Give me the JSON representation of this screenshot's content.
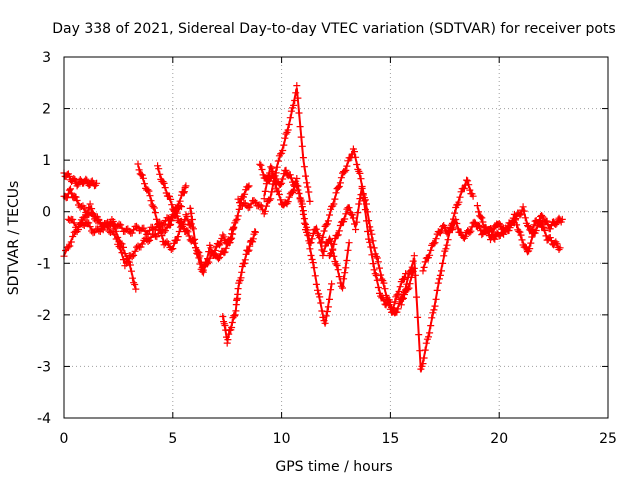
{
  "chart_data": {
    "type": "scatter",
    "title": "Day 338 of 2021, Sidereal Day-to-day VTEC variation (SDTVAR) for receiver pots",
    "xlabel": "GPS time / hours",
    "ylabel": "SDTVAR / TECUs",
    "xlim": [
      0,
      25
    ],
    "ylim": [
      -4,
      3
    ],
    "xticks": [
      "0",
      "5",
      "10",
      "15",
      "20",
      "25"
    ],
    "yticks": [
      "3",
      "2",
      "1",
      "0",
      "-1",
      "-2",
      "-3",
      "-4"
    ],
    "grid": true,
    "marker": "+",
    "series": [
      {
        "name": "SDTVAR",
        "color": "#ff0000",
        "tracks": [
          {
            "x": [
              0.0,
              0.3,
              0.6,
              0.9,
              1.2,
              1.5
            ],
            "y": [
              0.75,
              0.65,
              0.55,
              0.6,
              0.55,
              0.55
            ]
          },
          {
            "x": [
              0.0,
              0.3,
              0.6,
              1.0,
              1.4,
              1.8,
              2.2,
              2.6,
              3.0,
              3.3
            ],
            "y": [
              0.25,
              0.4,
              0.2,
              0.0,
              -0.1,
              -0.3,
              -0.2,
              -0.6,
              -1.0,
              -1.5
            ]
          },
          {
            "x": [
              0.0,
              0.4,
              0.8,
              1.2,
              1.6,
              2.0,
              2.4,
              2.8,
              3.2,
              3.6,
              4.0,
              4.4,
              4.8,
              5.0,
              5.4
            ],
            "y": [
              -0.85,
              -0.5,
              -0.2,
              0.1,
              -0.2,
              -0.3,
              -0.5,
              -1.0,
              -0.8,
              -0.6,
              -0.5,
              -0.4,
              -0.3,
              -0.1,
              0.1
            ]
          },
          {
            "x": [
              0.2,
              0.6,
              1.0,
              1.4,
              1.8,
              2.2,
              2.6,
              3.0,
              3.4,
              3.8,
              4.2,
              4.6,
              5.0,
              5.4,
              5.6
            ],
            "y": [
              -0.1,
              -0.3,
              -0.2,
              -0.4,
              -0.3,
              -0.2,
              -0.3,
              -0.4,
              -0.3,
              -0.4,
              -0.3,
              -0.2,
              -0.1,
              0.3,
              0.5
            ]
          },
          {
            "x": [
              3.4,
              3.7,
              4.0,
              4.3,
              4.6,
              5.0,
              5.3,
              5.6,
              5.9
            ],
            "y": [
              0.9,
              0.55,
              0.25,
              -0.2,
              -0.6,
              -0.7,
              -0.4,
              -0.1,
              -0.3
            ]
          },
          {
            "x": [
              4.3,
              4.6,
              4.9,
              5.2,
              5.5,
              5.8,
              6.1,
              6.4,
              6.7,
              7.0,
              7.3,
              7.6,
              7.9,
              8.2,
              8.5
            ],
            "y": [
              0.85,
              0.5,
              0.2,
              -0.1,
              -0.3,
              -0.5,
              -0.7,
              -1.1,
              -0.9,
              -0.7,
              -0.5,
              -0.6,
              -0.2,
              0.3,
              0.5
            ]
          },
          {
            "x": [
              5.8,
              6.1,
              6.4,
              6.7,
              7.0,
              7.3,
              7.6,
              7.8
            ],
            "y": [
              0.1,
              -0.8,
              -1.2,
              -0.7,
              -0.9,
              -0.8,
              -0.6,
              -0.3
            ]
          },
          {
            "x": [
              7.3,
              7.5,
              7.7,
              7.9,
              8.0,
              8.2,
              8.4,
              8.6,
              8.8
            ],
            "y": [
              -2.0,
              -2.5,
              -2.2,
              -1.9,
              -1.5,
              -1.1,
              -0.8,
              -0.6,
              -0.4
            ]
          },
          {
            "x": [
              8.0,
              8.4,
              8.8,
              9.2,
              9.5,
              9.8,
              10.1,
              10.4,
              10.7,
              11.0,
              11.3
            ],
            "y": [
              0.2,
              0.1,
              0.2,
              0.0,
              0.3,
              0.9,
              1.3,
              1.8,
              2.4,
              1.0,
              0.2
            ]
          },
          {
            "x": [
              9.0,
              9.3,
              9.6,
              9.9,
              10.2,
              10.5,
              10.8,
              11.1,
              11.4,
              11.7,
              12.0,
              12.3
            ],
            "y": [
              0.9,
              0.6,
              0.7,
              0.5,
              0.8,
              0.6,
              0.4,
              -0.3,
              -0.9,
              -1.6,
              -2.2,
              -1.4
            ]
          },
          {
            "x": [
              9.2,
              9.5,
              9.8,
              10.1,
              10.4,
              10.7,
              11.0,
              11.3,
              11.6,
              11.9,
              12.2,
              12.5,
              12.8,
              13.1
            ],
            "y": [
              0.3,
              0.9,
              0.4,
              0.1,
              0.3,
              0.6,
              0.0,
              -0.6,
              -0.3,
              -0.8,
              -0.5,
              -1.0,
              -1.5,
              -0.6
            ]
          },
          {
            "x": [
              11.8,
              12.1,
              12.4,
              12.7,
              13.0,
              13.3,
              13.6,
              13.9,
              14.2,
              14.5,
              14.8,
              15.1,
              15.4,
              15.7
            ],
            "y": [
              -0.6,
              -0.2,
              0.2,
              0.6,
              0.9,
              1.2,
              0.7,
              0.1,
              -0.6,
              -1.1,
              -1.6,
              -1.9,
              -1.5,
              -1.2
            ]
          },
          {
            "x": [
              12.2,
              12.5,
              12.8,
              13.1,
              13.4,
              13.7,
              14.0,
              14.3,
              14.6,
              14.9,
              15.2,
              15.5,
              15.8,
              16.1
            ],
            "y": [
              -0.9,
              -0.5,
              -0.2,
              0.1,
              -0.3,
              0.5,
              -0.5,
              -1.2,
              -1.7,
              -1.8,
              -2.0,
              -1.7,
              -1.5,
              -1.1
            ]
          },
          {
            "x": [
              15.5,
              15.8,
              16.1,
              16.4,
              16.7,
              17.0,
              17.3,
              17.6,
              17.9,
              18.2,
              18.5,
              18.8
            ],
            "y": [
              -1.8,
              -1.3,
              -0.9,
              -3.1,
              -2.5,
              -1.9,
              -1.2,
              -0.6,
              -0.1,
              0.3,
              0.6,
              0.3
            ]
          },
          {
            "x": [
              16.5,
              16.8,
              17.1,
              17.4,
              17.7,
              18.0,
              18.3,
              18.6,
              18.9,
              19.2,
              19.5,
              19.8,
              20.1,
              20.4,
              20.7,
              21.0,
              21.3,
              21.6,
              21.9,
              22.2,
              22.5,
              22.8
            ],
            "y": [
              -1.1,
              -0.8,
              -0.5,
              -0.3,
              -0.4,
              -0.2,
              -0.5,
              -0.4,
              -0.2,
              -0.4,
              -0.3,
              -0.5,
              -0.4,
              -0.3,
              -0.1,
              -0.5,
              -0.8,
              -0.4,
              -0.2,
              -0.5,
              -0.6,
              -0.7
            ]
          },
          {
            "x": [
              19.0,
              19.3,
              19.6,
              19.9,
              20.2,
              20.5,
              20.8,
              21.1,
              21.4,
              21.7,
              22.0,
              22.3,
              22.6,
              22.9
            ],
            "y": [
              0.1,
              -0.3,
              -0.5,
              -0.2,
              -0.4,
              -0.3,
              -0.1,
              0.05,
              -0.4,
              -0.2,
              -0.1,
              -0.3,
              -0.2,
              -0.15
            ]
          }
        ]
      }
    ]
  }
}
